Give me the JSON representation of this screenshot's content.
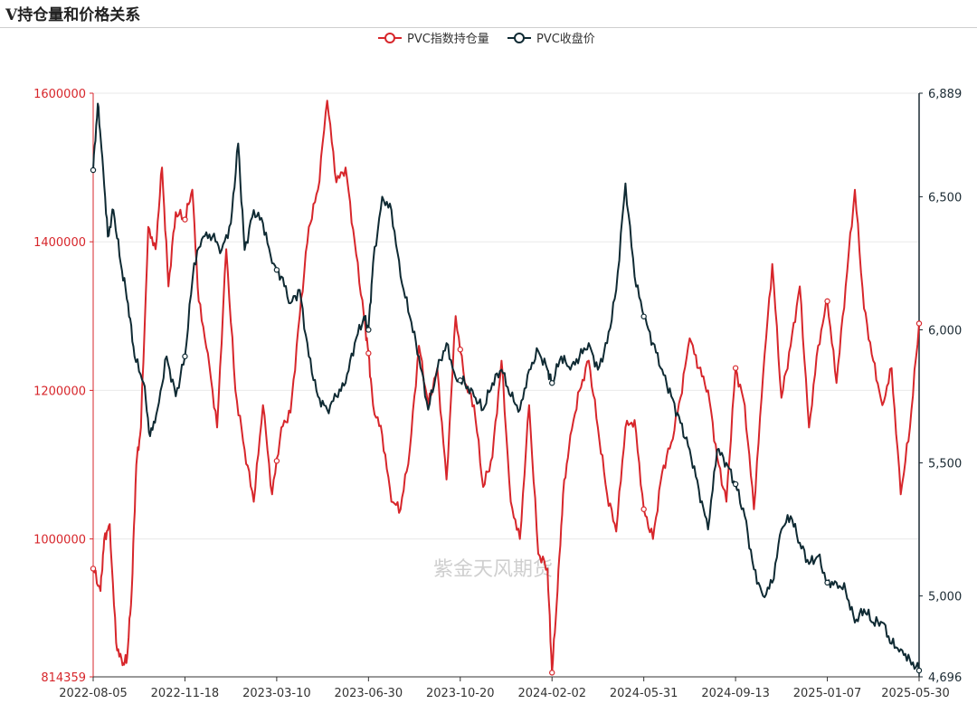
{
  "title": "V持仓量和价格关系",
  "watermark": "紫金天风期货",
  "colors": {
    "open_interest": "#d7262b",
    "price": "#0f2a33",
    "grid": "#e9e9e9"
  },
  "chart_data": {
    "type": "line",
    "title": "V持仓量和价格关系",
    "legend_position": "top-center",
    "grid": true,
    "x_ticks": [
      "2022-08-05",
      "2022-11-18",
      "2023-03-10",
      "2023-06-30",
      "2023-10-20",
      "2024-02-02",
      "2024-05-31",
      "2024-09-13",
      "2025-01-07",
      "2025-05-30"
    ],
    "y_left": {
      "min": 814359,
      "max": 1600000,
      "ticks": [
        "1600000",
        "1400000",
        "1200000",
        "1000000",
        "814359"
      ]
    },
    "y_right": {
      "min": 4696,
      "max": 6889,
      "ticks": [
        "6,889",
        "6,500",
        "6,000",
        "5,500",
        "5,000",
        "4,696"
      ]
    },
    "series": [
      {
        "name": "PVC指数持仓量",
        "axis": "left",
        "color": "#d7262b",
        "x": [
          0,
          0.08,
          0.12,
          0.18,
          0.25,
          0.32,
          0.37,
          0.42,
          0.47,
          0.52,
          0.6,
          0.68,
          0.75,
          0.82,
          0.9,
          1.0,
          1.08,
          1.15,
          1.25,
          1.35,
          1.45,
          1.55,
          1.65,
          1.75,
          1.85,
          1.95,
          2.05,
          2.15,
          2.25,
          2.35,
          2.45,
          2.55,
          2.65,
          2.75,
          2.85,
          2.95,
          3.0,
          3.05,
          3.15,
          3.25,
          3.35,
          3.45,
          3.55,
          3.65,
          3.75,
          3.85,
          3.95,
          4.05,
          4.15,
          4.25,
          4.35,
          4.45,
          4.55,
          4.65,
          4.75,
          4.85,
          4.95,
          5.0,
          5.06,
          5.12,
          5.2,
          5.3,
          5.4,
          5.5,
          5.6,
          5.7,
          5.8,
          5.9,
          6.0,
          6.1,
          6.2,
          6.3,
          6.4,
          6.5,
          6.6,
          6.7,
          6.8,
          6.9,
          7.0,
          7.1,
          7.2,
          7.3,
          7.4,
          7.5,
          7.6,
          7.7,
          7.8,
          7.9,
          8.0,
          8.1,
          8.2,
          8.3,
          8.4,
          8.5,
          8.6,
          8.7,
          8.8,
          8.9,
          9.0
        ],
        "values": [
          960000,
          930000,
          1000000,
          1020000,
          860000,
          830000,
          840000,
          930000,
          1100000,
          1150000,
          1420000,
          1390000,
          1500000,
          1340000,
          1440000,
          1430000,
          1470000,
          1320000,
          1250000,
          1150000,
          1390000,
          1200000,
          1120000,
          1050000,
          1180000,
          1060000,
          1150000,
          1170000,
          1300000,
          1420000,
          1470000,
          1590000,
          1480000,
          1500000,
          1400000,
          1300000,
          1250000,
          1180000,
          1140000,
          1050000,
          1040000,
          1120000,
          1260000,
          1180000,
          1230000,
          1080000,
          1300000,
          1210000,
          1180000,
          1070000,
          1110000,
          1240000,
          1050000,
          1000000,
          1180000,
          980000,
          960000,
          820000,
          930000,
          1060000,
          1140000,
          1200000,
          1240000,
          1150000,
          1060000,
          1010000,
          1150000,
          1160000,
          1040000,
          1000000,
          1090000,
          1130000,
          1190000,
          1270000,
          1230000,
          1200000,
          1110000,
          1050000,
          1230000,
          1180000,
          1040000,
          1220000,
          1370000,
          1190000,
          1260000,
          1340000,
          1150000,
          1260000,
          1320000,
          1210000,
          1340000,
          1470000,
          1310000,
          1240000,
          1180000,
          1230000,
          1060000,
          1150000,
          1290000
        ]
      },
      {
        "name": "PVC收盘价",
        "axis": "right",
        "color": "#0f2a33",
        "x": [
          0,
          0.05,
          0.1,
          0.16,
          0.22,
          0.3,
          0.38,
          0.45,
          0.55,
          0.62,
          0.7,
          0.8,
          0.9,
          1.0,
          1.1,
          1.2,
          1.3,
          1.4,
          1.5,
          1.58,
          1.65,
          1.75,
          1.85,
          1.95,
          2.05,
          2.15,
          2.25,
          2.35,
          2.45,
          2.55,
          2.65,
          2.75,
          2.85,
          2.95,
          3.0,
          3.05,
          3.15,
          3.25,
          3.35,
          3.45,
          3.55,
          3.65,
          3.75,
          3.85,
          3.95,
          4.05,
          4.15,
          4.25,
          4.35,
          4.45,
          4.55,
          4.65,
          4.75,
          4.85,
          4.95,
          5.0,
          5.1,
          5.2,
          5.3,
          5.4,
          5.5,
          5.6,
          5.7,
          5.8,
          5.9,
          6.0,
          6.1,
          6.2,
          6.3,
          6.4,
          6.5,
          6.6,
          6.7,
          6.8,
          6.9,
          7.0,
          7.1,
          7.2,
          7.3,
          7.4,
          7.5,
          7.6,
          7.7,
          7.8,
          7.9,
          8.0,
          8.1,
          8.2,
          8.3,
          8.4,
          8.5,
          8.6,
          8.7,
          8.8,
          8.9,
          9.0
        ],
        "values": [
          6600,
          6850,
          6650,
          6350,
          6450,
          6250,
          6100,
          5900,
          5800,
          5600,
          5700,
          5900,
          5750,
          5900,
          6250,
          6350,
          6350,
          6300,
          6400,
          6700,
          6300,
          6450,
          6400,
          6250,
          6200,
          6100,
          6150,
          5900,
          5750,
          5700,
          5750,
          5800,
          5950,
          6050,
          6000,
          6250,
          6500,
          6450,
          6200,
          6050,
          5900,
          5700,
          5850,
          5950,
          5820,
          5800,
          5750,
          5700,
          5800,
          5850,
          5750,
          5700,
          5850,
          5920,
          5850,
          5800,
          5900,
          5850,
          5900,
          5950,
          5850,
          5950,
          6150,
          6550,
          6200,
          6050,
          5950,
          5850,
          5750,
          5650,
          5550,
          5400,
          5250,
          5550,
          5500,
          5420,
          5300,
          5100,
          5000,
          5050,
          5250,
          5300,
          5200,
          5120,
          5150,
          5050,
          5050,
          5020,
          4900,
          4950,
          4900,
          4900,
          4820,
          4800,
          4760,
          4720
        ]
      }
    ]
  }
}
